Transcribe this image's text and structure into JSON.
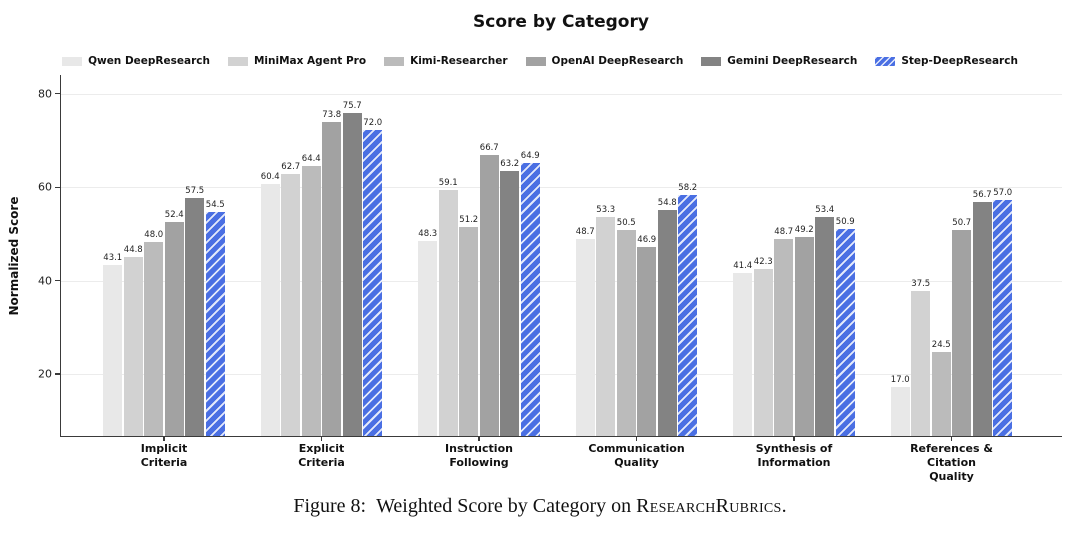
{
  "caption": {
    "prefix": "Figure 8:",
    "body": "Weighted Score by Category on",
    "smallcaps": "ResearchRubrics",
    "suffix": "."
  },
  "chart_data": {
    "type": "bar",
    "title": "Score by Category",
    "ylabel": "Normalized Score",
    "xlabel": "",
    "categories": [
      "Implicit\nCriteria",
      "Explicit\nCriteria",
      "Instruction\nFollowing",
      "Communication\nQuality",
      "Synthesis of\nInformation",
      "References &\nCitation\nQuality"
    ],
    "series": [
      {
        "name": "Qwen DeepResearch",
        "color": "#e8e8e8",
        "hatch": false,
        "values": [
          43.1,
          60.4,
          48.3,
          48.7,
          41.4,
          17.0
        ]
      },
      {
        "name": "MiniMax Agent Pro",
        "color": "#d2d2d2",
        "hatch": false,
        "values": [
          44.8,
          62.7,
          59.1,
          53.3,
          42.3,
          37.5
        ]
      },
      {
        "name": "Kimi-Researcher",
        "color": "#bbbbbb",
        "hatch": false,
        "values": [
          48.0,
          64.4,
          51.2,
          50.5,
          48.7,
          24.5
        ]
      },
      {
        "name": "OpenAI DeepResearch",
        "color": "#a2a2a2",
        "hatch": false,
        "values": [
          52.4,
          73.8,
          66.7,
          46.9,
          49.2,
          50.7
        ]
      },
      {
        "name": "Gemini DeepResearch",
        "color": "#838383",
        "hatch": false,
        "values": [
          57.5,
          75.7,
          63.2,
          54.8,
          53.4,
          56.7
        ]
      },
      {
        "name": "Step-DeepResearch",
        "color": "#4a6fe3",
        "hatch": true,
        "values": [
          54.5,
          72.0,
          64.9,
          58.2,
          50.9,
          57.0
        ]
      }
    ],
    "yticks": [
      20,
      40,
      60,
      80
    ],
    "ylim": [
      6.5,
      84
    ],
    "grid": true,
    "legend_position": "top center",
    "accent_color": "#4a6fe3",
    "axis_color": "#3a3a3a",
    "grid_color": "#ececec",
    "hatch_color": "#ffffff"
  }
}
